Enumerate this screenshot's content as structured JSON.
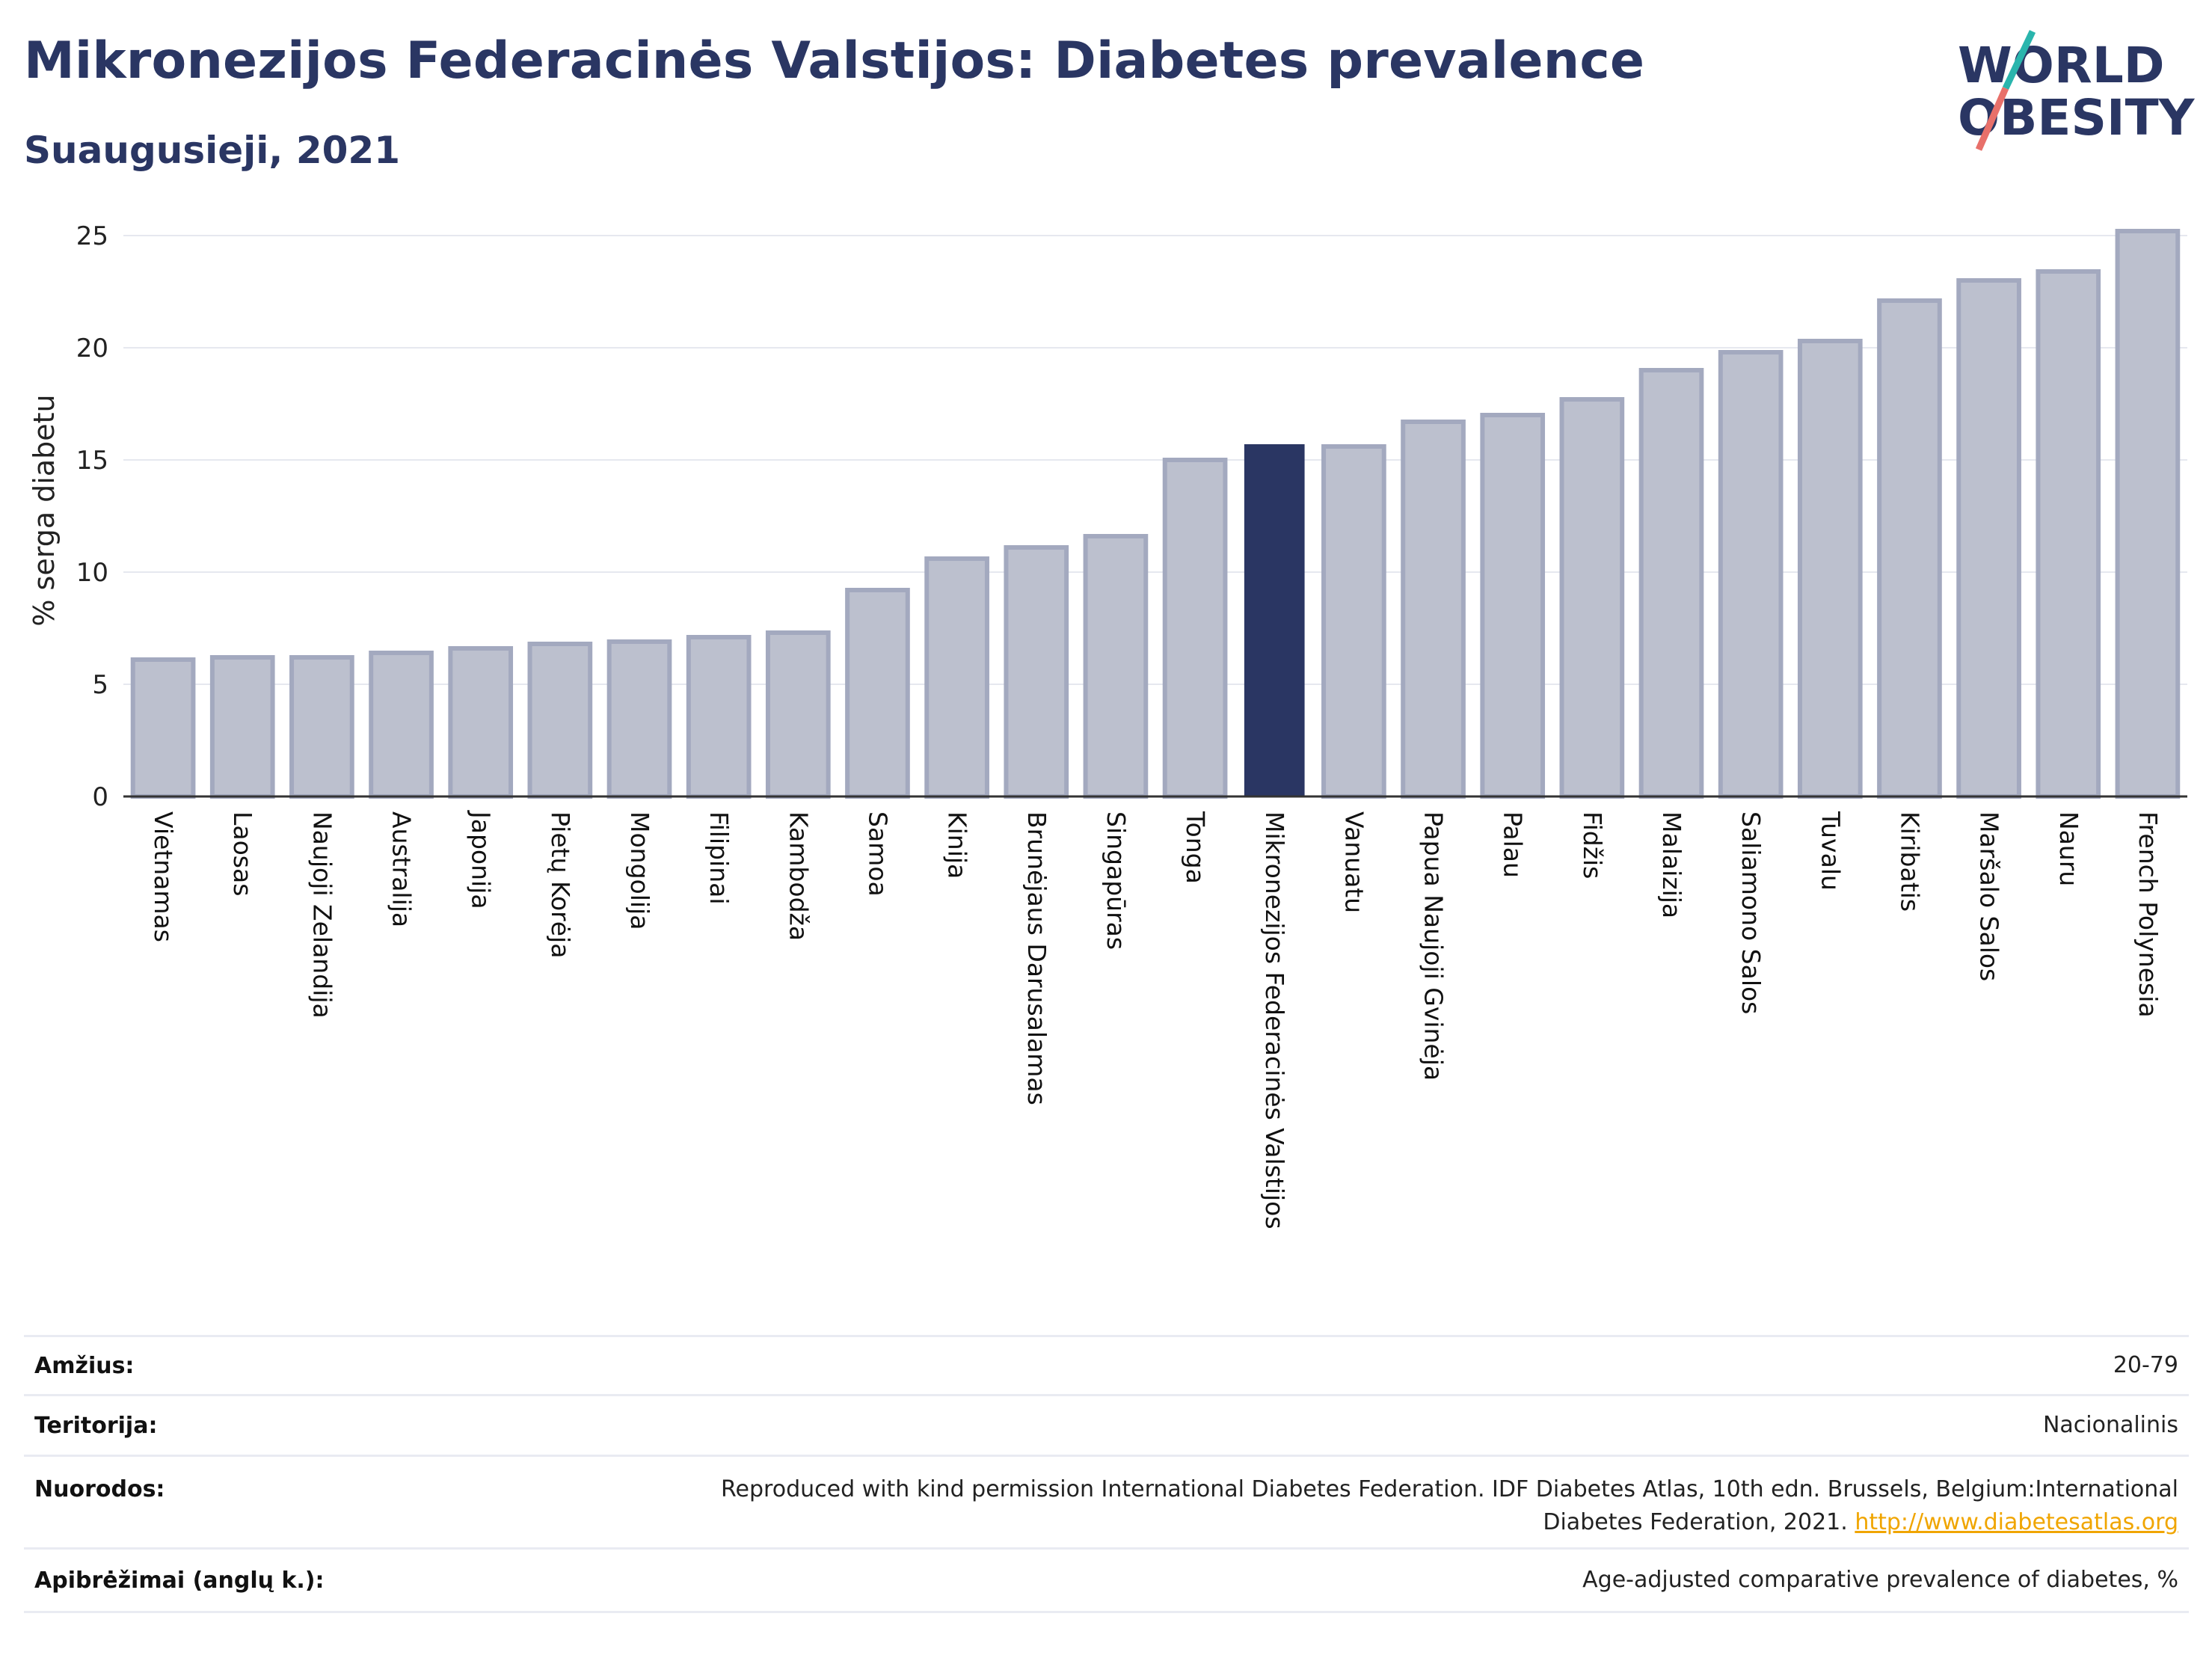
{
  "header": {
    "title": "Mikronezijos Federacinės Valstijos: Diabetes prevalence",
    "subtitle": "Suaugusieji, 2021"
  },
  "logo": {
    "line1": "WORLD",
    "line2": "OBESITY",
    "colors": {
      "text": "#2a3663",
      "slash_top": "#2ab5ad",
      "slash_bottom": "#e8706a"
    }
  },
  "colors": {
    "bar": "#bcc0ce",
    "bar_border": "#a3a9bf",
    "highlight": "#2a3663",
    "grid": "#e6e8ef"
  },
  "chart_data": {
    "type": "bar",
    "ylabel": "% serga diabetu",
    "ylim": [
      0,
      25.5
    ],
    "yticks": [
      0,
      5,
      10,
      15,
      20,
      25
    ],
    "grid": true,
    "highlight": "Mikronezijos Federacinės Valstijos",
    "categories": [
      "Vietnamas",
      "Laosas",
      "Naujoji Zelandija",
      "Australija",
      "Japonija",
      "Pietų Korėja",
      "Mongolija",
      "Filipinai",
      "Kambodža",
      "Samoa",
      "Kinija",
      "Brunėjaus Darusalamas",
      "Singapūras",
      "Tonga",
      "Mikronezijos Federacinės Valstijos",
      "Vanuatu",
      "Papua Naujoji Gvinėja",
      "Palau",
      "Fidžis",
      "Malaizija",
      "Saliamono Salos",
      "Tuvalu",
      "Kiribatis",
      "Maršalo Salos",
      "Nauru",
      "French Polynesia"
    ],
    "values": [
      6.1,
      6.2,
      6.2,
      6.4,
      6.6,
      6.8,
      6.9,
      7.1,
      7.3,
      9.2,
      10.6,
      11.1,
      11.6,
      15.0,
      15.7,
      15.6,
      16.7,
      17.0,
      17.7,
      19.0,
      19.8,
      20.3,
      22.1,
      23.0,
      23.4,
      25.2
    ]
  },
  "info": [
    {
      "label": "Amžius:",
      "value": "20-79"
    },
    {
      "label": "Teritorija:",
      "value": "Nacionalinis"
    },
    {
      "label": "Nuorodos:",
      "value": "Reproduced with kind permission International Diabetes Federation.  IDF Diabetes Atlas, 10th edn. Brussels, Belgium:International Diabetes Federation, 2021.",
      "link": "http://www.diabetesatlas.org"
    },
    {
      "label": "Apibrėžimai (anglų k.):",
      "value": "Age-adjusted comparative prevalence of diabetes, %"
    }
  ]
}
